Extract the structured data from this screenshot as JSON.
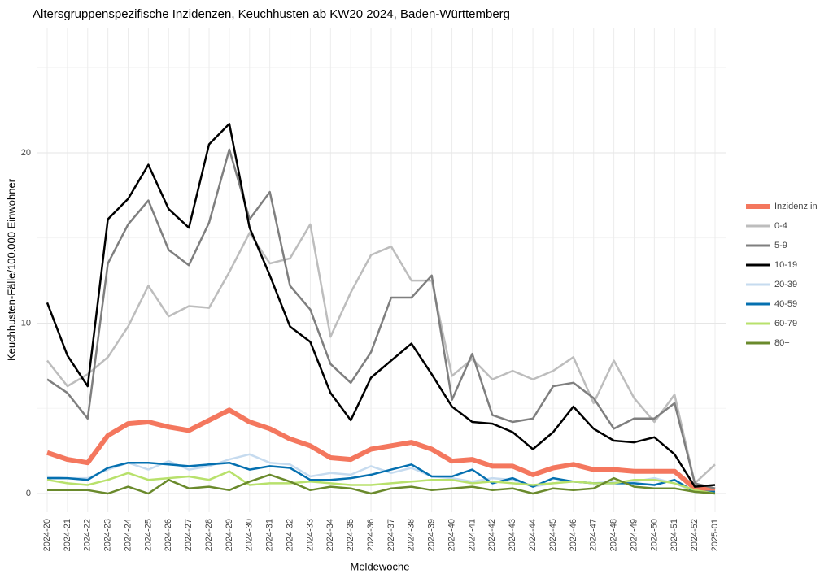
{
  "chart_data": {
    "type": "line",
    "title": "Altersgruppenspezifische Inzidenzen, Keuchhusten ab KW20 2024, Baden-Württemberg",
    "x_label": "Meldewoche",
    "y_label": "Keuchhusten-Fälle/100.000 Einwohner",
    "categories": [
      "2024-20",
      "2024-21",
      "2024-22",
      "2024-23",
      "2024-24",
      "2024-25",
      "2024-26",
      "2024-27",
      "2024-28",
      "2024-29",
      "2024-30",
      "2024-31",
      "2024-32",
      "2024-33",
      "2024-34",
      "2024-35",
      "2024-36",
      "2024-37",
      "2024-38",
      "2024-39",
      "2024-40",
      "2024-41",
      "2024-42",
      "2024-43",
      "2024-44",
      "2024-45",
      "2024-46",
      "2024-47",
      "2024-48",
      "2024-49",
      "2024-50",
      "2024-51",
      "2024-52",
      "2025-01"
    ],
    "ylim": [
      -1.1,
      27.3
    ],
    "yticks": [
      0,
      10,
      20
    ],
    "minor_yticks": [
      5,
      15,
      25
    ],
    "grid": true,
    "series": [
      {
        "name": "Inzidenz in BW",
        "color": "#f4775e",
        "values": [
          2.4,
          2.0,
          1.8,
          3.4,
          4.1,
          4.2,
          3.9,
          3.7,
          4.3,
          4.9,
          4.2,
          3.8,
          3.2,
          2.8,
          2.1,
          2.0,
          2.6,
          2.8,
          3.0,
          2.6,
          1.9,
          2.0,
          1.6,
          1.6,
          1.1,
          1.5,
          1.7,
          1.4,
          1.4,
          1.3,
          1.3,
          1.3,
          0.3,
          0.2
        ]
      },
      {
        "name": "0-4",
        "color": "#bdbdbd",
        "values": [
          7.8,
          6.3,
          7.0,
          8.0,
          9.8,
          12.2,
          10.4,
          11.0,
          10.9,
          13.0,
          15.3,
          13.5,
          13.8,
          15.8,
          9.2,
          11.8,
          14.0,
          14.5,
          12.5,
          12.5,
          6.9,
          7.9,
          6.7,
          7.2,
          6.7,
          7.2,
          8.0,
          5.3,
          7.8,
          5.6,
          4.2,
          5.8,
          0.6,
          1.7
        ]
      },
      {
        "name": "5-9",
        "color": "#7f7f7f",
        "values": [
          6.7,
          5.9,
          4.4,
          13.5,
          15.8,
          17.2,
          14.3,
          13.4,
          15.9,
          20.2,
          16.1,
          17.7,
          12.2,
          10.8,
          7.6,
          6.5,
          8.3,
          11.5,
          11.5,
          12.8,
          5.5,
          8.2,
          4.6,
          4.2,
          4.4,
          6.3,
          6.5,
          5.6,
          3.8,
          4.4,
          4.4,
          5.3,
          0.6,
          0.3
        ]
      },
      {
        "name": "10-19",
        "color": "#000000",
        "values": [
          11.2,
          8.1,
          6.3,
          16.1,
          17.3,
          19.3,
          16.7,
          15.6,
          20.5,
          21.7,
          15.6,
          12.8,
          9.8,
          8.9,
          5.9,
          4.3,
          6.8,
          7.8,
          8.8,
          7.0,
          5.1,
          4.2,
          4.1,
          3.6,
          2.6,
          3.6,
          5.1,
          3.8,
          3.1,
          3.0,
          3.3,
          2.3,
          0.4,
          0.5
        ]
      },
      {
        "name": "20-39",
        "color": "#c6dbef",
        "values": [
          1.0,
          0.9,
          0.9,
          1.4,
          1.8,
          1.4,
          1.9,
          1.4,
          1.6,
          2.0,
          2.3,
          1.8,
          1.7,
          1.0,
          1.2,
          1.1,
          1.6,
          1.2,
          1.5,
          1.0,
          0.9,
          0.7,
          0.9,
          0.8,
          0.4,
          0.6,
          0.7,
          0.6,
          0.7,
          0.7,
          0.9,
          0.6,
          0.1,
          0.1
        ]
      },
      {
        "name": "40-59",
        "color": "#0570b0",
        "values": [
          0.9,
          0.9,
          0.8,
          1.5,
          1.8,
          1.8,
          1.7,
          1.6,
          1.7,
          1.8,
          1.4,
          1.6,
          1.5,
          0.8,
          0.8,
          0.9,
          1.1,
          1.4,
          1.7,
          1.0,
          1.0,
          1.4,
          0.6,
          0.9,
          0.4,
          0.9,
          0.7,
          0.6,
          0.6,
          0.6,
          0.5,
          0.8,
          0.1,
          0.1
        ]
      },
      {
        "name": "60-79",
        "color": "#b8e16c",
        "values": [
          0.8,
          0.6,
          0.5,
          0.8,
          1.2,
          0.8,
          0.9,
          1.0,
          0.8,
          1.3,
          0.5,
          0.6,
          0.6,
          0.7,
          0.6,
          0.5,
          0.5,
          0.6,
          0.7,
          0.8,
          0.8,
          0.6,
          0.7,
          0.6,
          0.5,
          0.6,
          0.7,
          0.6,
          0.6,
          0.8,
          0.8,
          0.6,
          0.2,
          0.0
        ]
      },
      {
        "name": "80+",
        "color": "#6a8a2c",
        "values": [
          0.2,
          0.2,
          0.2,
          0.0,
          0.4,
          0.0,
          0.8,
          0.3,
          0.4,
          0.2,
          0.7,
          1.1,
          0.7,
          0.2,
          0.4,
          0.3,
          0.0,
          0.3,
          0.4,
          0.2,
          0.3,
          0.4,
          0.2,
          0.3,
          0.0,
          0.3,
          0.2,
          0.3,
          0.9,
          0.4,
          0.3,
          0.3,
          0.1,
          0.0
        ]
      }
    ]
  }
}
